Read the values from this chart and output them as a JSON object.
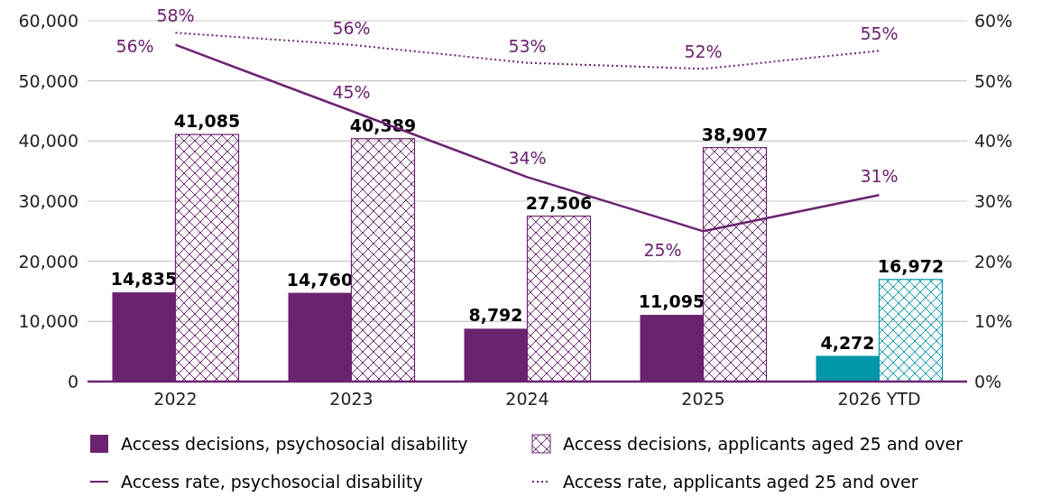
{
  "chart_data": {
    "type": "bar",
    "categories": [
      "2022",
      "2023",
      "2024",
      "2025",
      "2026 YTD"
    ],
    "series": [
      {
        "name": "Access decisions, psychosocial disability",
        "color": "#6b2370",
        "colors": [
          "#6b2370",
          "#6b2370",
          "#6b2370",
          "#6b2370",
          "#0096a9"
        ],
        "values": [
          14835,
          14760,
          8792,
          11095,
          4272
        ],
        "value_labels": [
          "14,835",
          "14,760",
          "8,792",
          "11,095",
          "4,272"
        ]
      },
      {
        "name": "Access decisions, applicants aged 25 and over",
        "color": "#6b2370",
        "colors": [
          "#6b2370",
          "#6b2370",
          "#6b2370",
          "#6b2370",
          "#0096a9"
        ],
        "values": [
          41085,
          40389,
          27506,
          38907,
          16972
        ],
        "value_labels": [
          "41,085",
          "40,389",
          "27,506",
          "38,907",
          "16,972"
        ]
      },
      {
        "name": "Access rate, psychosocial disability",
        "type": "line",
        "axis": "y2",
        "line_style": "solid",
        "color": "#6b2370",
        "values": [
          56,
          45,
          34,
          25,
          31
        ],
        "value_labels": [
          "56%",
          "45%",
          "34%",
          "25%",
          "31%"
        ]
      },
      {
        "name": "Access rate, applicants aged 25 and over",
        "type": "line",
        "axis": "y2",
        "line_style": "dotted",
        "color": "#6b2370",
        "values": [
          58,
          56,
          53,
          52,
          55
        ],
        "value_labels": [
          "58%",
          "56%",
          "53%",
          "52%",
          "55%"
        ]
      }
    ],
    "ylim": [
      0,
      60000
    ],
    "yticks": [
      {
        "value": 0,
        "label": "0"
      },
      {
        "value": 10000,
        "label": "10,000"
      },
      {
        "value": 20000,
        "label": "20,000"
      },
      {
        "value": 30000,
        "label": "30,000"
      },
      {
        "value": 40000,
        "label": "40,000"
      },
      {
        "value": 50000,
        "label": "50,000"
      },
      {
        "value": 60000,
        "label": "60,000"
      }
    ],
    "y2lim": [
      0,
      60
    ],
    "y2ticks": [
      {
        "value": 0,
        "label": "0%"
      },
      {
        "value": 10,
        "label": "10%"
      },
      {
        "value": 20,
        "label": "20%"
      },
      {
        "value": 30,
        "label": "30%"
      },
      {
        "value": 40,
        "label": "40%"
      },
      {
        "value": 50,
        "label": "50%"
      },
      {
        "value": 60,
        "label": "60%"
      }
    ],
    "grid": "y",
    "legend": "bottom",
    "marker": "none"
  }
}
